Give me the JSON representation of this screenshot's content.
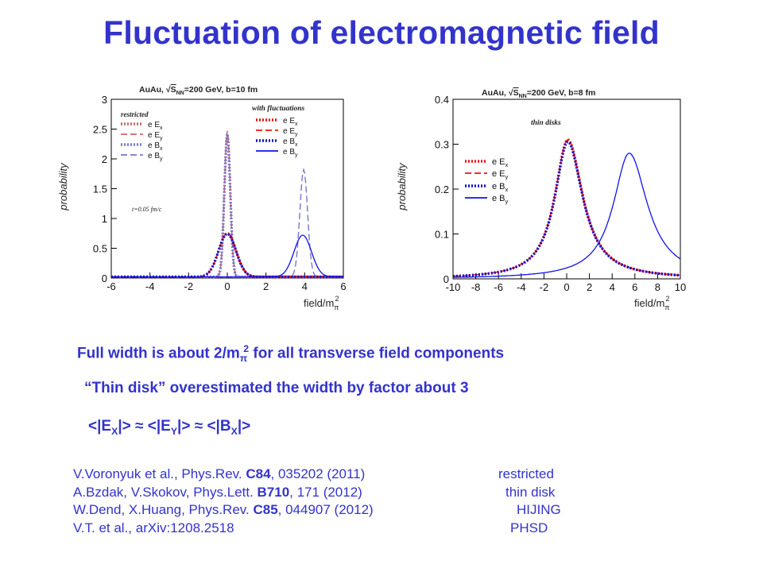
{
  "title": "Fluctuation of electromagnetic field",
  "left_plot": {
    "header_prefix": "AuAu, ",
    "header_sqrt": "√",
    "header_s": "S",
    "header_nn": "NN",
    "header_suffix": "=200 GeV, b=10 fm",
    "ylabel": "probability",
    "xlabel": "field/m",
    "xlabel_sub": "π",
    "xlabel_sup": "2",
    "legend_restricted_title": "restricted",
    "legend_fluct_title": "with fluctuations",
    "annotation": "t=0.05 fm/c",
    "legend_entries": [
      "e E",
      "e E",
      "e B",
      "e B"
    ],
    "legend_subs": [
      "x",
      "y",
      "x",
      "y"
    ]
  },
  "right_plot": {
    "header_prefix": "AuAu, ",
    "header_sqrt": "√",
    "header_s": "S",
    "header_nn": "NN",
    "header_suffix": "=200 GeV, b=8 fm",
    "ylabel": "probability",
    "xlabel": "field/m",
    "xlabel_sub": "π",
    "xlabel_sup": "2",
    "legend_title": "thin disks",
    "legend_entries": [
      "e E",
      "e E",
      "e B",
      "e B"
    ],
    "legend_subs": [
      "x",
      "y",
      "x",
      "y"
    ]
  },
  "chart_data": [
    {
      "type": "line",
      "title": "AuAu, √SNN=200 GeV, b=10 fm",
      "xlabel": "field/mπ2",
      "ylabel": "probability",
      "xlim": [
        -6,
        6
      ],
      "ylim": [
        0,
        3
      ],
      "x_ticks": [
        -6,
        -4,
        -2,
        0,
        2,
        4,
        6
      ],
      "y_ticks": [
        0,
        0.5,
        1,
        1.5,
        2,
        2.5,
        3
      ],
      "y_tick_labels": [
        "0",
        "0.5",
        "1",
        "1.5",
        "2",
        "2.5",
        "3"
      ],
      "series": [
        {
          "name": "restricted e Ex",
          "color": "#cc6666",
          "style": "dotted",
          "peak": {
            "center": 0,
            "height": 2.4,
            "width": 0.15
          }
        },
        {
          "name": "restricted e Ey",
          "color": "#cc6666",
          "style": "dashed",
          "peak": {
            "center": 0,
            "height": 2.45,
            "width": 0.15
          }
        },
        {
          "name": "restricted e Bx",
          "color": "#7777cc",
          "style": "dotted",
          "peak": {
            "center": 0,
            "height": 2.4,
            "width": 0.15
          }
        },
        {
          "name": "restricted e By",
          "color": "#7777cc",
          "style": "dashed",
          "peak": {
            "center": 3.95,
            "height": 1.8,
            "width": 0.2
          }
        },
        {
          "name": "with fluctuations e Ex",
          "color": "#ee1111",
          "style": "dotted",
          "peak": {
            "center": 0,
            "height": 0.73,
            "width": 0.45
          }
        },
        {
          "name": "with fluctuations e Ey",
          "color": "#ee1111",
          "style": "dashed",
          "peak": {
            "center": 0,
            "height": 0.73,
            "width": 0.45
          }
        },
        {
          "name": "with fluctuations e Bx",
          "color": "#1111cc",
          "style": "dotted",
          "peak": {
            "center": 0,
            "height": 0.72,
            "width": 0.45
          }
        },
        {
          "name": "with fluctuations e By",
          "color": "#1111ee",
          "style": "solid",
          "peak": {
            "center": 3.9,
            "height": 0.7,
            "width": 0.45
          }
        }
      ],
      "legend": "top-left"
    },
    {
      "type": "line",
      "title": "AuAu, √SNN=200 GeV, b=8 fm",
      "xlabel": "field/mπ2",
      "ylabel": "probability",
      "xlim": [
        -10,
        10
      ],
      "ylim": [
        0,
        0.4
      ],
      "x_ticks": [
        -10,
        -8,
        -6,
        -4,
        -2,
        0,
        2,
        4,
        6,
        8,
        10
      ],
      "y_ticks": [
        0,
        0.1,
        0.2,
        0.3,
        0.4
      ],
      "y_tick_labels": [
        "0",
        "0.1",
        "0.2",
        "0.3",
        "0.4"
      ],
      "series": [
        {
          "name": "e Ex",
          "color": "#ee1111",
          "style": "dotted",
          "peak": {
            "center": 0.1,
            "height": 0.31,
            "width": 1.4
          }
        },
        {
          "name": "e Ey",
          "color": "#ee1111",
          "style": "dashed",
          "peak": {
            "center": 0.1,
            "height": 0.31,
            "width": 1.4
          }
        },
        {
          "name": "e Bx",
          "color": "#1111cc",
          "style": "dotted",
          "peak": {
            "center": 0.1,
            "height": 0.305,
            "width": 1.4
          }
        },
        {
          "name": "e By",
          "color": "#1111ee",
          "style": "solid",
          "peak": {
            "center": 5.5,
            "height": 0.28,
            "width": 1.7
          }
        }
      ],
      "legend": "left"
    }
  ],
  "text_lines": {
    "line1_pre": "Full width  is about  2/m",
    "line1_sub": "π",
    "line1_sup": "2",
    "line1_post": " for all transverse field components",
    "line2": "“Thin disk” overestimated the width by factor about 3",
    "line3_a": "<|E",
    "line3_a_sub": "X",
    "line3_b": "|> ≈ <|E",
    "line3_b_sub": "Y",
    "line3_c": "|> ≈ <|B",
    "line3_c_sub": "X",
    "line3_d": "|>"
  },
  "references": [
    {
      "pre": "V.Voronyuk et al., Phys.Rev. ",
      "bold": "C84",
      "post": ", 035202 (2011)",
      "tag": "restricted"
    },
    {
      "pre": "A.Bzdak, V.Skokov, Phys.Lett. ",
      "bold": "B710",
      "post": ", 171 (2012)",
      "tag": "thin disk"
    },
    {
      "pre": "W.Dend, X.Huang, Phys.Rev. ",
      "bold": "C85",
      "post": ", 044907 (2012)",
      "tag": "HIJING"
    },
    {
      "pre": "V.T. et al., arXiv:1208.2518",
      "bold": "",
      "post": "",
      "tag": "PHSD"
    }
  ],
  "colors": {
    "title": "#3333cc",
    "text": "#3333cc"
  }
}
